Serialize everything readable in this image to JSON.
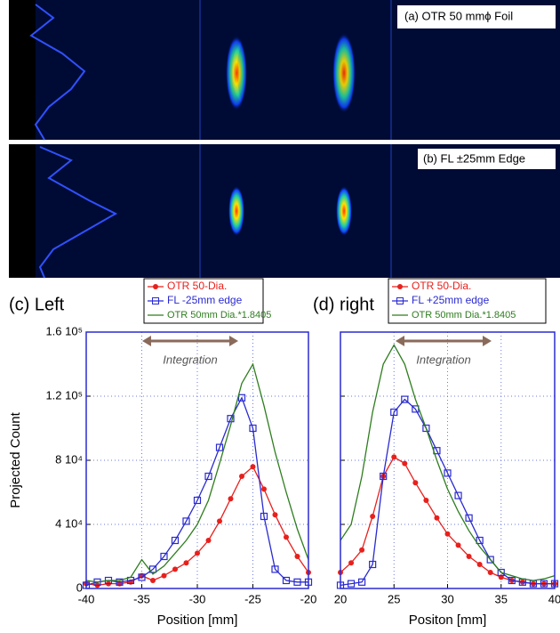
{
  "images": [
    {
      "label": "(a) OTR 50 mmϕ Foil"
    },
    {
      "label": "(b) FL ±25mm Edge"
    }
  ],
  "chart_data": [
    {
      "type": "line",
      "title": "(c) Left",
      "xlabel": "Position [mm]",
      "ylabel": "Projected Count",
      "annotation": "Integration",
      "grid": true,
      "y_tick_labels": true,
      "x": [
        -40,
        -39,
        -38,
        -37,
        -36,
        -35,
        -34,
        -33,
        -32,
        -31,
        -30,
        -29,
        -28,
        -27,
        -26,
        -25,
        -24,
        -23,
        -22,
        -21,
        -20
      ],
      "series": [
        {
          "name": "OTR 50-Dia.",
          "color": "#e8201c",
          "marker": "dot",
          "values": [
            3000,
            2000,
            3000,
            3000,
            4000,
            8000,
            5000,
            8000,
            12000,
            16000,
            22000,
            30000,
            42000,
            56000,
            70000,
            76000,
            62000,
            46000,
            32000,
            20000,
            10000
          ]
        },
        {
          "name": "FL -25mm edge",
          "color": "#2a2ad0",
          "marker": "square",
          "values": [
            2000,
            4000,
            5000,
            4000,
            5000,
            7000,
            12000,
            20000,
            30000,
            42000,
            55000,
            70000,
            88000,
            106000,
            119000,
            100000,
            45000,
            12000,
            5000,
            4000,
            4000
          ]
        },
        {
          "name": "OTR 50mm Dia.*1.8405",
          "color": "#2e7d1e",
          "marker": "none",
          "values": [
            5000,
            4000,
            5000,
            5000,
            7000,
            18000,
            9000,
            14000,
            22000,
            30000,
            40000,
            55000,
            78000,
            102000,
            128000,
            140000,
            114000,
            85000,
            60000,
            37000,
            18000
          ]
        }
      ],
      "xlim": [
        -40,
        -20
      ],
      "xticks": [
        -40,
        -35,
        -30,
        -25,
        -20
      ],
      "ylim": [
        0,
        160000
      ],
      "yticks": [
        0,
        {
          "value": 40000,
          "label": "4 10⁴"
        },
        {
          "value": 80000,
          "label": "8 10⁴"
        },
        {
          "value": 120000,
          "label": "1.2 10⁵"
        },
        {
          "value": 160000,
          "label": "1.6 10⁵"
        }
      ]
    },
    {
      "type": "line",
      "title": "(d) right",
      "xlabel": "Positon [mm]",
      "annotation": "Integration",
      "grid": true,
      "y_tick_labels": false,
      "x": [
        20,
        21,
        22,
        23,
        24,
        25,
        26,
        27,
        28,
        29,
        30,
        31,
        32,
        33,
        34,
        35,
        36,
        37,
        38,
        39,
        40
      ],
      "series": [
        {
          "name": "OTR 50-Dia.",
          "color": "#e8201c",
          "marker": "dot",
          "values": [
            10000,
            16000,
            24000,
            45000,
            70000,
            82000,
            78000,
            66000,
            55000,
            44000,
            34000,
            27000,
            20000,
            15000,
            10000,
            7000,
            5000,
            4000,
            3000,
            3000,
            3000
          ]
        },
        {
          "name": "FL +25mm edge",
          "color": "#2a2ad0",
          "marker": "square",
          "values": [
            2000,
            3000,
            4000,
            15000,
            70000,
            110000,
            118000,
            112000,
            100000,
            86000,
            72000,
            58000,
            44000,
            30000,
            18000,
            10000,
            5000,
            4000,
            3000,
            3000,
            3000
          ]
        },
        {
          "name": "OTR 50mm Dia.*1.8405",
          "color": "#2e7d1e",
          "marker": "none",
          "values": [
            30000,
            40000,
            70000,
            110000,
            140000,
            152000,
            140000,
            118000,
            100000,
            80000,
            62000,
            48000,
            36000,
            26000,
            18000,
            10000,
            8000,
            6000,
            5000,
            6000,
            8000
          ]
        }
      ],
      "xlim": [
        20,
        40
      ],
      "xticks": [
        20,
        25,
        30,
        35,
        40
      ],
      "ylim": [
        0,
        160000
      ],
      "yticks": [
        0,
        40000,
        80000,
        120000,
        160000
      ]
    }
  ]
}
